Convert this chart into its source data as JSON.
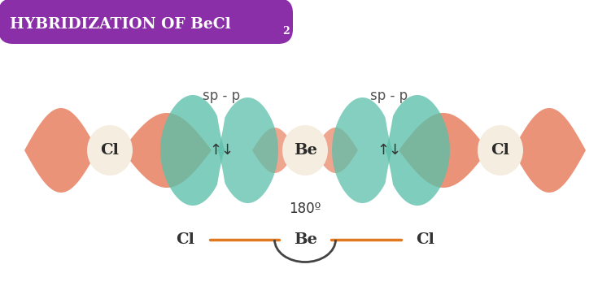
{
  "title_text": "HYBRIDIZATION OF BeCl",
  "title_sub": "2",
  "title_bg": "#8b2fa8",
  "title_text_color": "#ffffff",
  "bg_color": "#ffffff",
  "salmon": "#e88060",
  "salmon_alpha": 0.85,
  "teal": "#5bbfaa",
  "teal_alpha": 0.8,
  "label_bg": "#f5ede0",
  "sp_p_label": "sp - p",
  "angle_label": "180º",
  "line_color": "#e07820",
  "text_color": "#333333"
}
